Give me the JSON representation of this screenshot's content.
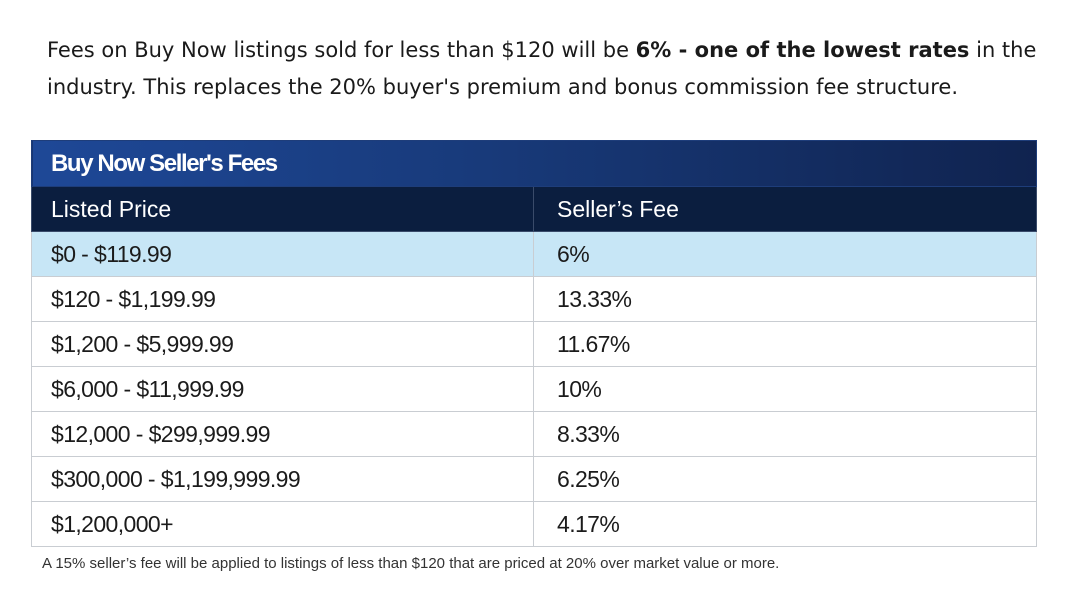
{
  "intro": {
    "part1": "Fees on Buy Now listings sold for less than $120 will be ",
    "bold": "6% - one of the lowest rates",
    "part2": " in the industry. This replaces the 20% buyer's premium and bonus commission fee structure."
  },
  "table": {
    "title": "Buy Now Seller's Fees",
    "headers": [
      "Listed Price",
      "Seller’s Fee"
    ],
    "rows": [
      [
        "$0 - $119.99",
        "6%"
      ],
      [
        "$120 - $1,199.99",
        "13.33%"
      ],
      [
        "$1,200 - $5,999.99",
        "11.67%"
      ],
      [
        "$6,000 - $11,999.99",
        "10%"
      ],
      [
        "$12,000 - $299,999.99",
        "8.33%"
      ],
      [
        "$300,000 - $1,199,999.99",
        "6.25%"
      ],
      [
        "$1,200,000+",
        "4.17%"
      ]
    ],
    "highlight_color": "#c7e6f6",
    "header_color": "#0b1e3f",
    "title_color": "#1e4897"
  },
  "footnote": "A 15% seller’s fee will be applied to listings of less than $120 that are priced at 20% over market value or more."
}
